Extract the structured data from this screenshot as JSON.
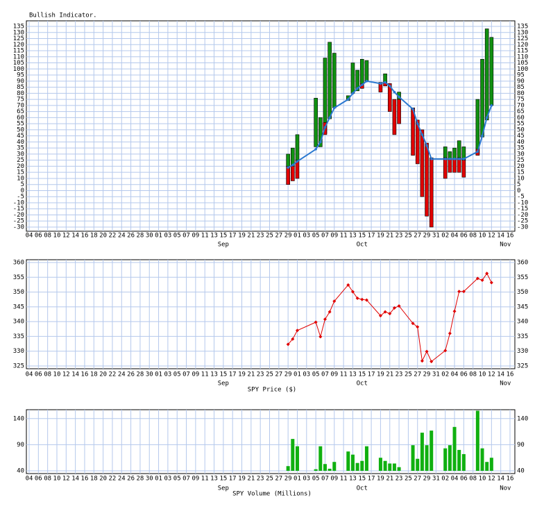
{
  "chart_data": [
    {
      "type": "floating-bar",
      "title": "Bullish Indicator.",
      "x": [
        "Sep 29",
        "Sep 30",
        "Oct 01",
        "Oct 05",
        "Oct 06",
        "Oct 07",
        "Oct 08",
        "Oct 09",
        "Oct 12",
        "Oct 13",
        "Oct 14",
        "Oct 15",
        "Oct 16",
        "Oct 19",
        "Oct 20",
        "Oct 21",
        "Oct 22",
        "Oct 23",
        "Oct 26",
        "Oct 27",
        "Oct 28",
        "Oct 29",
        "Oct 30",
        "Nov 02",
        "Nov 03",
        "Nov 04",
        "Nov 05",
        "Nov 06",
        "Nov 09",
        "Nov 10",
        "Nov 11",
        "Nov 12"
      ],
      "up": [
        [
          20,
          30
        ],
        [
          20,
          35
        ],
        [
          25,
          46
        ],
        [
          36,
          76
        ],
        [
          36,
          60
        ],
        [
          47,
          109
        ],
        [
          59,
          122
        ],
        [
          68,
          113
        ],
        [
          74,
          78
        ],
        [
          80,
          105
        ],
        [
          82,
          99
        ],
        [
          88,
          108
        ],
        [
          90,
          107
        ],
        null,
        [
          88,
          96
        ],
        null,
        null,
        [
          75,
          81
        ],
        [
          67,
          68
        ],
        null,
        null,
        null,
        null,
        [
          27,
          36
        ],
        [
          26,
          32
        ],
        [
          26,
          35
        ],
        [
          27,
          41
        ],
        [
          25,
          36
        ],
        [
          30,
          75
        ],
        [
          44,
          108
        ],
        [
          58,
          133
        ],
        [
          70,
          126
        ]
      ],
      "down": [
        [
          5,
          20
        ],
        [
          8,
          20
        ],
        [
          10,
          25
        ],
        null,
        null,
        [
          46,
          56
        ],
        null,
        null,
        null,
        null,
        null,
        [
          84,
          88
        ],
        null,
        [
          81,
          89
        ],
        [
          86,
          89
        ],
        [
          65,
          88
        ],
        [
          46,
          75
        ],
        [
          55,
          75
        ],
        [
          29,
          68
        ],
        [
          22,
          58
        ],
        [
          -5,
          50
        ],
        [
          -21,
          39
        ],
        [
          -30,
          27
        ],
        [
          10,
          27
        ],
        [
          15,
          26
        ],
        [
          15,
          26
        ],
        [
          15,
          27
        ],
        [
          11,
          25
        ],
        [
          29,
          34
        ],
        null,
        null,
        null
      ],
      "line": [
        19,
        21,
        24,
        34,
        40,
        52,
        60,
        68,
        75,
        80,
        84,
        87,
        90,
        88,
        89,
        86,
        81,
        77,
        67,
        55,
        46,
        37,
        26,
        26,
        26,
        26,
        26,
        26,
        32,
        45,
        60,
        70
      ],
      "up_color": "#109010",
      "down_color": "#e00000",
      "line_color": "#2a78d0",
      "ylim": [
        -30,
        135
      ],
      "yticks": [
        -30,
        -25,
        -20,
        -15,
        -10,
        -5,
        0,
        5,
        10,
        15,
        20,
        25,
        30,
        35,
        40,
        45,
        50,
        55,
        60,
        65,
        70,
        75,
        80,
        85,
        90,
        95,
        100,
        105,
        110,
        115,
        120,
        125,
        130,
        135
      ],
      "xlim": [
        "Aug 04",
        "Nov 16"
      ],
      "xticks": [
        {
          "value": "Aug 04",
          "label": "04"
        },
        {
          "value": "Aug 06",
          "label": "06"
        },
        {
          "value": "Aug 08",
          "label": "08"
        },
        {
          "value": "Aug 10",
          "label": "10"
        },
        {
          "value": "Aug 12",
          "label": "12"
        },
        {
          "value": "Aug 14",
          "label": "14"
        },
        {
          "value": "Aug 16",
          "label": "16"
        },
        {
          "value": "Aug 18",
          "label": "18"
        },
        {
          "value": "Aug 20",
          "label": "20"
        },
        {
          "value": "Aug 22",
          "label": "22"
        },
        {
          "value": "Aug 24",
          "label": "24"
        },
        {
          "value": "Aug 26",
          "label": "26"
        },
        {
          "value": "Aug 28",
          "label": "28"
        },
        {
          "value": "Aug 30",
          "label": "30"
        },
        {
          "value": "Sep 01",
          "label": "01"
        },
        {
          "value": "Sep 03",
          "label": "03"
        },
        {
          "value": "Sep 05",
          "label": "05"
        },
        {
          "value": "Sep 07",
          "label": "07"
        },
        {
          "value": "Sep 09",
          "label": "09"
        },
        {
          "value": "Sep 11",
          "label": "11"
        },
        {
          "value": "Sep 13",
          "label": "13"
        },
        {
          "value": "Sep 15",
          "label": "15"
        },
        {
          "value": "Sep 17",
          "label": "17"
        },
        {
          "value": "Sep 19",
          "label": "19"
        },
        {
          "value": "Sep 21",
          "label": "21"
        },
        {
          "value": "Sep 23",
          "label": "23"
        },
        {
          "value": "Sep 25",
          "label": "25"
        },
        {
          "value": "Sep 27",
          "label": "27"
        },
        {
          "value": "Sep 29",
          "label": "29"
        },
        {
          "value": "Oct 01",
          "label": "01"
        },
        {
          "value": "Oct 03",
          "label": "03"
        },
        {
          "value": "Oct 05",
          "label": "05"
        },
        {
          "value": "Oct 07",
          "label": "07"
        },
        {
          "value": "Oct 09",
          "label": "09"
        },
        {
          "value": "Oct 11",
          "label": "11"
        },
        {
          "value": "Oct 13",
          "label": "13"
        },
        {
          "value": "Oct 15",
          "label": "15"
        },
        {
          "value": "Oct 17",
          "label": "17"
        },
        {
          "value": "Oct 19",
          "label": "19"
        },
        {
          "value": "Oct 21",
          "label": "21"
        },
        {
          "value": "Oct 23",
          "label": "23"
        },
        {
          "value": "Oct 25",
          "label": "25"
        },
        {
          "value": "Oct 27",
          "label": "27"
        },
        {
          "value": "Oct 29",
          "label": "29"
        },
        {
          "value": "Oct 31",
          "label": "31"
        },
        {
          "value": "Nov 02",
          "label": "02"
        },
        {
          "value": "Nov 04",
          "label": "04"
        },
        {
          "value": "Nov 06",
          "label": "06"
        },
        {
          "value": "Nov 08",
          "label": "08"
        },
        {
          "value": "Nov 10",
          "label": "10"
        },
        {
          "value": "Nov 12",
          "label": "12"
        },
        {
          "value": "Nov 14",
          "label": "14"
        },
        {
          "value": "Nov 16",
          "label": "16"
        }
      ],
      "month_labels": [
        "Sep",
        "Oct",
        "Nov"
      ],
      "grid": true
    },
    {
      "type": "line",
      "xlabel": "SPY Price ($)",
      "x": [
        "Sep 29",
        "Sep 30",
        "Oct 01",
        "Oct 05",
        "Oct 06",
        "Oct 07",
        "Oct 08",
        "Oct 09",
        "Oct 12",
        "Oct 13",
        "Oct 14",
        "Oct 15",
        "Oct 16",
        "Oct 19",
        "Oct 20",
        "Oct 21",
        "Oct 22",
        "Oct 23",
        "Oct 26",
        "Oct 27",
        "Oct 28",
        "Oct 29",
        "Oct 30",
        "Nov 02",
        "Nov 03",
        "Nov 04",
        "Nov 05",
        "Nov 06",
        "Nov 09",
        "Nov 10",
        "Nov 11",
        "Nov 12"
      ],
      "values": [
        332.3,
        334.1,
        337,
        339.8,
        334.9,
        340.8,
        343.3,
        346.9,
        352.4,
        350.1,
        347.9,
        347.5,
        347.3,
        342,
        343.3,
        342.7,
        344.6,
        345.3,
        339.4,
        338.2,
        326.7,
        329.9,
        326.5,
        330.2,
        336,
        343.5,
        350.2,
        350.2,
        354.6,
        354,
        356.3,
        353.2
      ],
      "color": "#e00000",
      "ylim": [
        325,
        360
      ],
      "yticks": [
        325,
        330,
        335,
        340,
        345,
        350,
        355,
        360
      ],
      "xlim": [
        "Aug 04",
        "Nov 16"
      ],
      "xticks": [
        {
          "value": "Aug 04",
          "label": "04"
        },
        {
          "value": "Aug 06",
          "label": "06"
        },
        {
          "value": "Aug 08",
          "label": "08"
        },
        {
          "value": "Aug 10",
          "label": "10"
        },
        {
          "value": "Aug 12",
          "label": "12"
        },
        {
          "value": "Aug 14",
          "label": "14"
        },
        {
          "value": "Aug 16",
          "label": "16"
        },
        {
          "value": "Aug 18",
          "label": "18"
        },
        {
          "value": "Aug 20",
          "label": "20"
        },
        {
          "value": "Aug 22",
          "label": "22"
        },
        {
          "value": "Aug 24",
          "label": "24"
        },
        {
          "value": "Aug 26",
          "label": "26"
        },
        {
          "value": "Aug 28",
          "label": "28"
        },
        {
          "value": "Aug 30",
          "label": "30"
        },
        {
          "value": "Sep 01",
          "label": "01"
        },
        {
          "value": "Sep 03",
          "label": "03"
        },
        {
          "value": "Sep 05",
          "label": "05"
        },
        {
          "value": "Sep 07",
          "label": "07"
        },
        {
          "value": "Sep 09",
          "label": "09"
        },
        {
          "value": "Sep 11",
          "label": "11"
        },
        {
          "value": "Sep 13",
          "label": "13"
        },
        {
          "value": "Sep 15",
          "label": "15"
        },
        {
          "value": "Sep 17",
          "label": "17"
        },
        {
          "value": "Sep 19",
          "label": "19"
        },
        {
          "value": "Sep 21",
          "label": "21"
        },
        {
          "value": "Sep 23",
          "label": "23"
        },
        {
          "value": "Sep 25",
          "label": "25"
        },
        {
          "value": "Sep 27",
          "label": "27"
        },
        {
          "value": "Sep 29",
          "label": "29"
        },
        {
          "value": "Oct 01",
          "label": "01"
        },
        {
          "value": "Oct 03",
          "label": "03"
        },
        {
          "value": "Oct 05",
          "label": "05"
        },
        {
          "value": "Oct 07",
          "label": "07"
        },
        {
          "value": "Oct 09",
          "label": "09"
        },
        {
          "value": "Oct 11",
          "label": "11"
        },
        {
          "value": "Oct 13",
          "label": "13"
        },
        {
          "value": "Oct 15",
          "label": "15"
        },
        {
          "value": "Oct 17",
          "label": "17"
        },
        {
          "value": "Oct 19",
          "label": "19"
        },
        {
          "value": "Oct 21",
          "label": "21"
        },
        {
          "value": "Oct 23",
          "label": "23"
        },
        {
          "value": "Oct 25",
          "label": "25"
        },
        {
          "value": "Oct 27",
          "label": "27"
        },
        {
          "value": "Oct 29",
          "label": "29"
        },
        {
          "value": "Oct 31",
          "label": "31"
        },
        {
          "value": "Nov 02",
          "label": "02"
        },
        {
          "value": "Nov 04",
          "label": "04"
        },
        {
          "value": "Nov 06",
          "label": "06"
        },
        {
          "value": "Nov 08",
          "label": "08"
        },
        {
          "value": "Nov 10",
          "label": "10"
        },
        {
          "value": "Nov 12",
          "label": "12"
        },
        {
          "value": "Nov 14",
          "label": "14"
        },
        {
          "value": "Nov 16",
          "label": "16"
        }
      ],
      "month_labels": [
        "Sep",
        "Oct",
        "Nov"
      ],
      "grid": true
    },
    {
      "type": "bar",
      "xlabel": "SPY Volume (Millions)",
      "x": [
        "Sep 29",
        "Sep 30",
        "Oct 01",
        "Oct 05",
        "Oct 06",
        "Oct 07",
        "Oct 08",
        "Oct 09",
        "Oct 12",
        "Oct 13",
        "Oct 14",
        "Oct 15",
        "Oct 16",
        "Oct 19",
        "Oct 20",
        "Oct 21",
        "Oct 22",
        "Oct 23",
        "Oct 26",
        "Oct 27",
        "Oct 28",
        "Oct 29",
        "Oct 30",
        "Nov 02",
        "Nov 03",
        "Nov 04",
        "Nov 05",
        "Nov 06",
        "Nov 09",
        "Nov 10",
        "Nov 11",
        "Nov 12"
      ],
      "values": [
        49,
        101,
        87,
        43,
        87,
        53,
        44,
        57,
        77,
        71,
        55,
        59,
        87,
        65,
        59,
        54,
        54,
        47,
        89,
        63,
        113,
        89,
        117,
        83,
        89,
        124,
        80,
        72,
        155,
        83,
        57,
        65
      ],
      "color": "#10b010",
      "ylim": [
        40,
        157
      ],
      "yticks": [
        40,
        90,
        140
      ],
      "xlim": [
        "Aug 04",
        "Nov 16"
      ],
      "xticks": [
        {
          "value": "Aug 04",
          "label": "04"
        },
        {
          "value": "Aug 06",
          "label": "06"
        },
        {
          "value": "Aug 08",
          "label": "08"
        },
        {
          "value": "Aug 10",
          "label": "10"
        },
        {
          "value": "Aug 12",
          "label": "12"
        },
        {
          "value": "Aug 14",
          "label": "14"
        },
        {
          "value": "Aug 16",
          "label": "16"
        },
        {
          "value": "Aug 18",
          "label": "18"
        },
        {
          "value": "Aug 20",
          "label": "20"
        },
        {
          "value": "Aug 22",
          "label": "22"
        },
        {
          "value": "Aug 24",
          "label": "24"
        },
        {
          "value": "Aug 26",
          "label": "26"
        },
        {
          "value": "Aug 28",
          "label": "28"
        },
        {
          "value": "Aug 30",
          "label": "30"
        },
        {
          "value": "Sep 01",
          "label": "01"
        },
        {
          "value": "Sep 03",
          "label": "03"
        },
        {
          "value": "Sep 05",
          "label": "05"
        },
        {
          "value": "Sep 07",
          "label": "07"
        },
        {
          "value": "Sep 09",
          "label": "09"
        },
        {
          "value": "Sep 11",
          "label": "11"
        },
        {
          "value": "Sep 13",
          "label": "13"
        },
        {
          "value": "Sep 15",
          "label": "15"
        },
        {
          "value": "Sep 17",
          "label": "17"
        },
        {
          "value": "Sep 19",
          "label": "19"
        },
        {
          "value": "Sep 21",
          "label": "21"
        },
        {
          "value": "Sep 23",
          "label": "23"
        },
        {
          "value": "Sep 25",
          "label": "25"
        },
        {
          "value": "Sep 27",
          "label": "27"
        },
        {
          "value": "Sep 29",
          "label": "29"
        },
        {
          "value": "Oct 01",
          "label": "01"
        },
        {
          "value": "Oct 03",
          "label": "03"
        },
        {
          "value": "Oct 05",
          "label": "05"
        },
        {
          "value": "Oct 07",
          "label": "07"
        },
        {
          "value": "Oct 09",
          "label": "09"
        },
        {
          "value": "Oct 11",
          "label": "11"
        },
        {
          "value": "Oct 13",
          "label": "13"
        },
        {
          "value": "Oct 15",
          "label": "15"
        },
        {
          "value": "Oct 17",
          "label": "17"
        },
        {
          "value": "Oct 19",
          "label": "19"
        },
        {
          "value": "Oct 21",
          "label": "21"
        },
        {
          "value": "Oct 23",
          "label": "23"
        },
        {
          "value": "Oct 25",
          "label": "25"
        },
        {
          "value": "Oct 27",
          "label": "27"
        },
        {
          "value": "Oct 29",
          "label": "29"
        },
        {
          "value": "Oct 31",
          "label": "31"
        },
        {
          "value": "Nov 02",
          "label": "02"
        },
        {
          "value": "Nov 04",
          "label": "04"
        },
        {
          "value": "Nov 06",
          "label": "06"
        },
        {
          "value": "Nov 08",
          "label": "08"
        },
        {
          "value": "Nov 10",
          "label": "10"
        },
        {
          "value": "Nov 12",
          "label": "12"
        },
        {
          "value": "Nov 14",
          "label": "14"
        },
        {
          "value": "Nov 16",
          "label": "16"
        }
      ],
      "month_labels": [
        "Sep",
        "Oct",
        "Nov"
      ],
      "grid": true
    }
  ]
}
